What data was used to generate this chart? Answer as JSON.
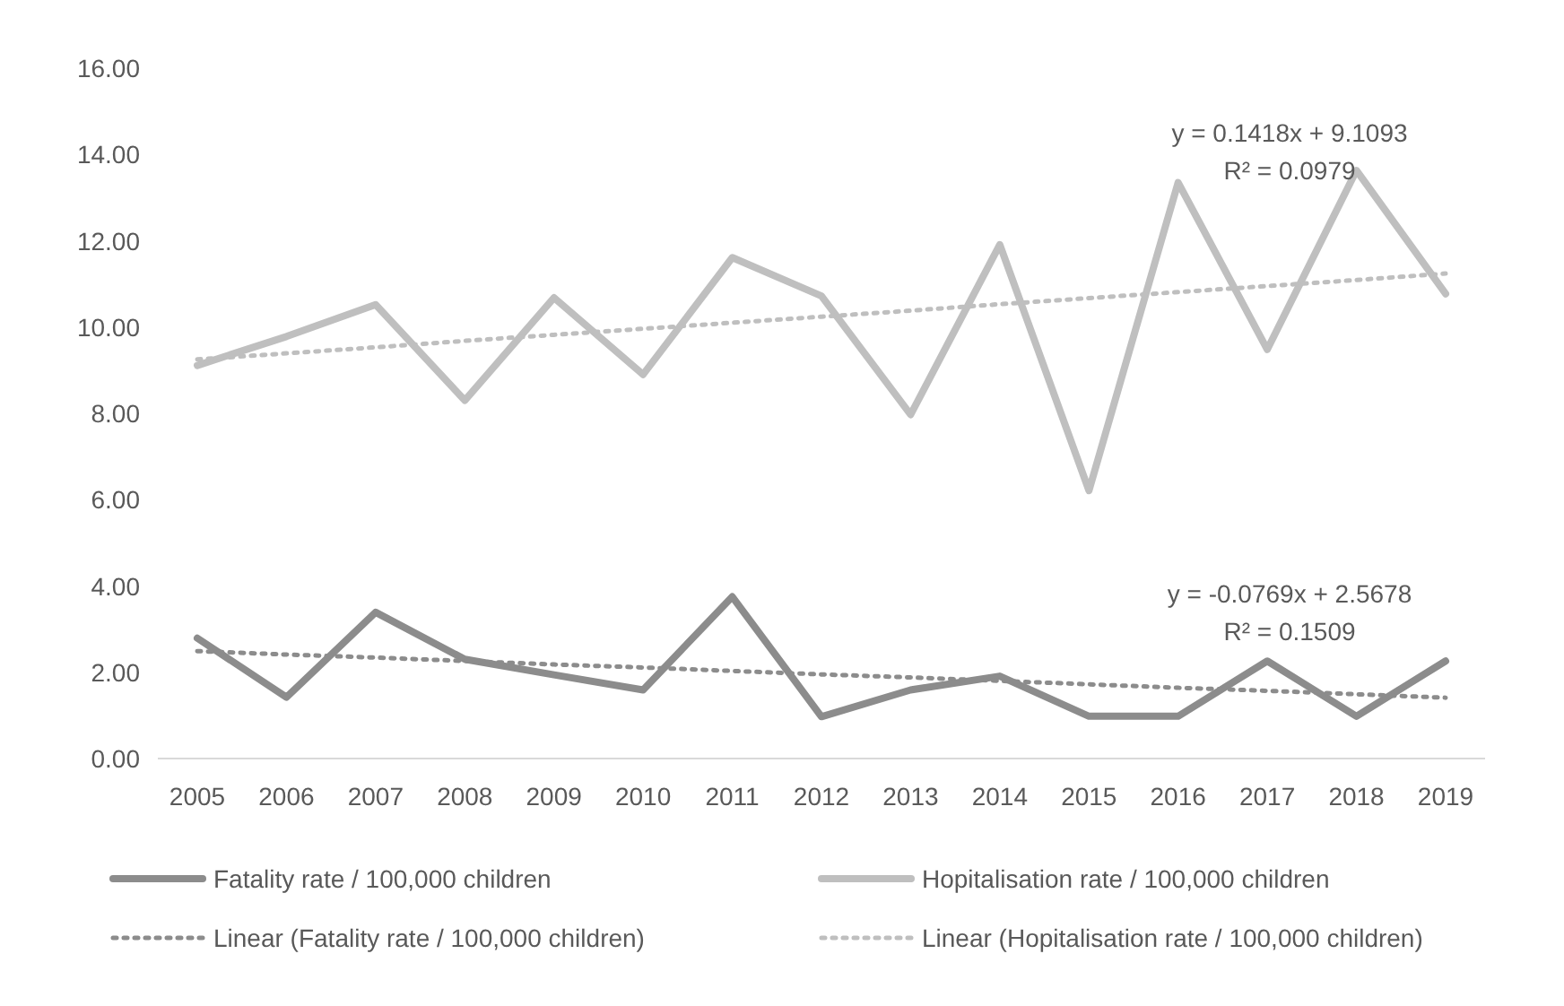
{
  "chart_data": {
    "type": "line",
    "categories": [
      "2005",
      "2006",
      "2007",
      "2008",
      "2009",
      "2010",
      "2011",
      "2012",
      "2013",
      "2014",
      "2015",
      "2016",
      "2017",
      "2018",
      "2019"
    ],
    "series": [
      {
        "name": "Fatality rate / 100,000 children",
        "color": "#8c8c8c",
        "line_style": "solid",
        "values": [
          2.79,
          1.42,
          3.39,
          2.3,
          1.94,
          1.59,
          3.75,
          0.97,
          1.59,
          1.91,
          0.98,
          0.98,
          2.26,
          0.98,
          2.26
        ]
      },
      {
        "name": "Hopitalisation rate / 100,000 children",
        "color": "#bfbfbf",
        "line_style": "solid",
        "values": [
          9.11,
          9.78,
          10.52,
          8.3,
          10.68,
          8.9,
          11.61,
          10.72,
          7.97,
          11.91,
          6.21,
          13.35,
          9.48,
          13.63,
          10.77
        ]
      },
      {
        "name": "Linear (Fatality rate / 100,000 children)",
        "color": "#8c8c8c",
        "line_style": "dotted",
        "values": [
          2.49,
          2.41,
          2.34,
          2.26,
          2.18,
          2.11,
          2.03,
          1.95,
          1.88,
          1.8,
          1.72,
          1.64,
          1.57,
          1.49,
          1.41
        ]
      },
      {
        "name": "Linear (Hopitalisation rate / 100,000 children)",
        "color": "#bfbfbf",
        "line_style": "dotted",
        "values": [
          9.25,
          9.39,
          9.53,
          9.68,
          9.82,
          9.96,
          10.1,
          10.24,
          10.38,
          10.53,
          10.67,
          10.81,
          10.95,
          11.09,
          11.24
        ]
      }
    ],
    "ylim": [
      0,
      16
    ],
    "yticks": [
      {
        "value": 0,
        "label": "0.00"
      },
      {
        "value": 2,
        "label": "2.00"
      },
      {
        "value": 4,
        "label": "4.00"
      },
      {
        "value": 6,
        "label": "6.00"
      },
      {
        "value": 8,
        "label": "8.00"
      },
      {
        "value": 10,
        "label": "10.00"
      },
      {
        "value": 12,
        "label": "12.00"
      },
      {
        "value": 14,
        "label": "14.00"
      },
      {
        "value": 16,
        "label": "16.00"
      }
    ],
    "grid": false,
    "legend": "bottom",
    "marker": "none",
    "annotations": [
      "y = 0.1418x + 9.1093",
      "R² = 0.0979",
      "y = -0.0769x + 2.5678",
      "R² = 0.1509"
    ]
  }
}
